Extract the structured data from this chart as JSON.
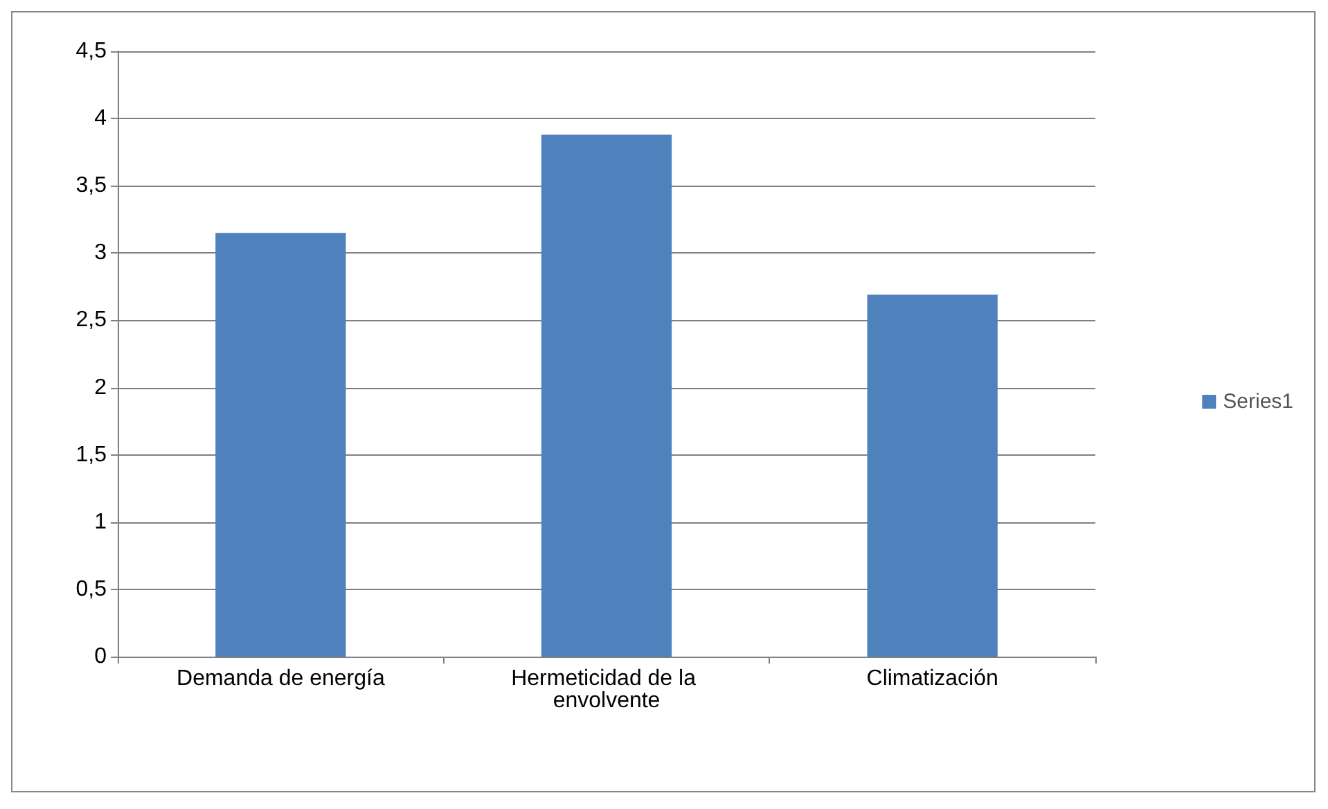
{
  "chart_data": {
    "type": "bar",
    "categories": [
      "Demanda de energía",
      "Hermeticidad de la envolvente",
      "Climatización"
    ],
    "series": [
      {
        "name": "Series1",
        "color": "#4f81bd",
        "values": [
          3.15,
          3.88,
          2.69
        ]
      }
    ],
    "ylim": [
      0,
      4.5
    ],
    "yticks": [
      0,
      {
        "value": 0.5,
        "label": "0,5"
      },
      1,
      {
        "value": 1.5,
        "label": "1,5"
      },
      2,
      {
        "value": 2.5,
        "label": "2,5"
      },
      3,
      {
        "value": 3.5,
        "label": "3,5"
      },
      4,
      {
        "value": 4.5,
        "label": "4,5"
      }
    ],
    "grid": "y",
    "legend": "right"
  }
}
